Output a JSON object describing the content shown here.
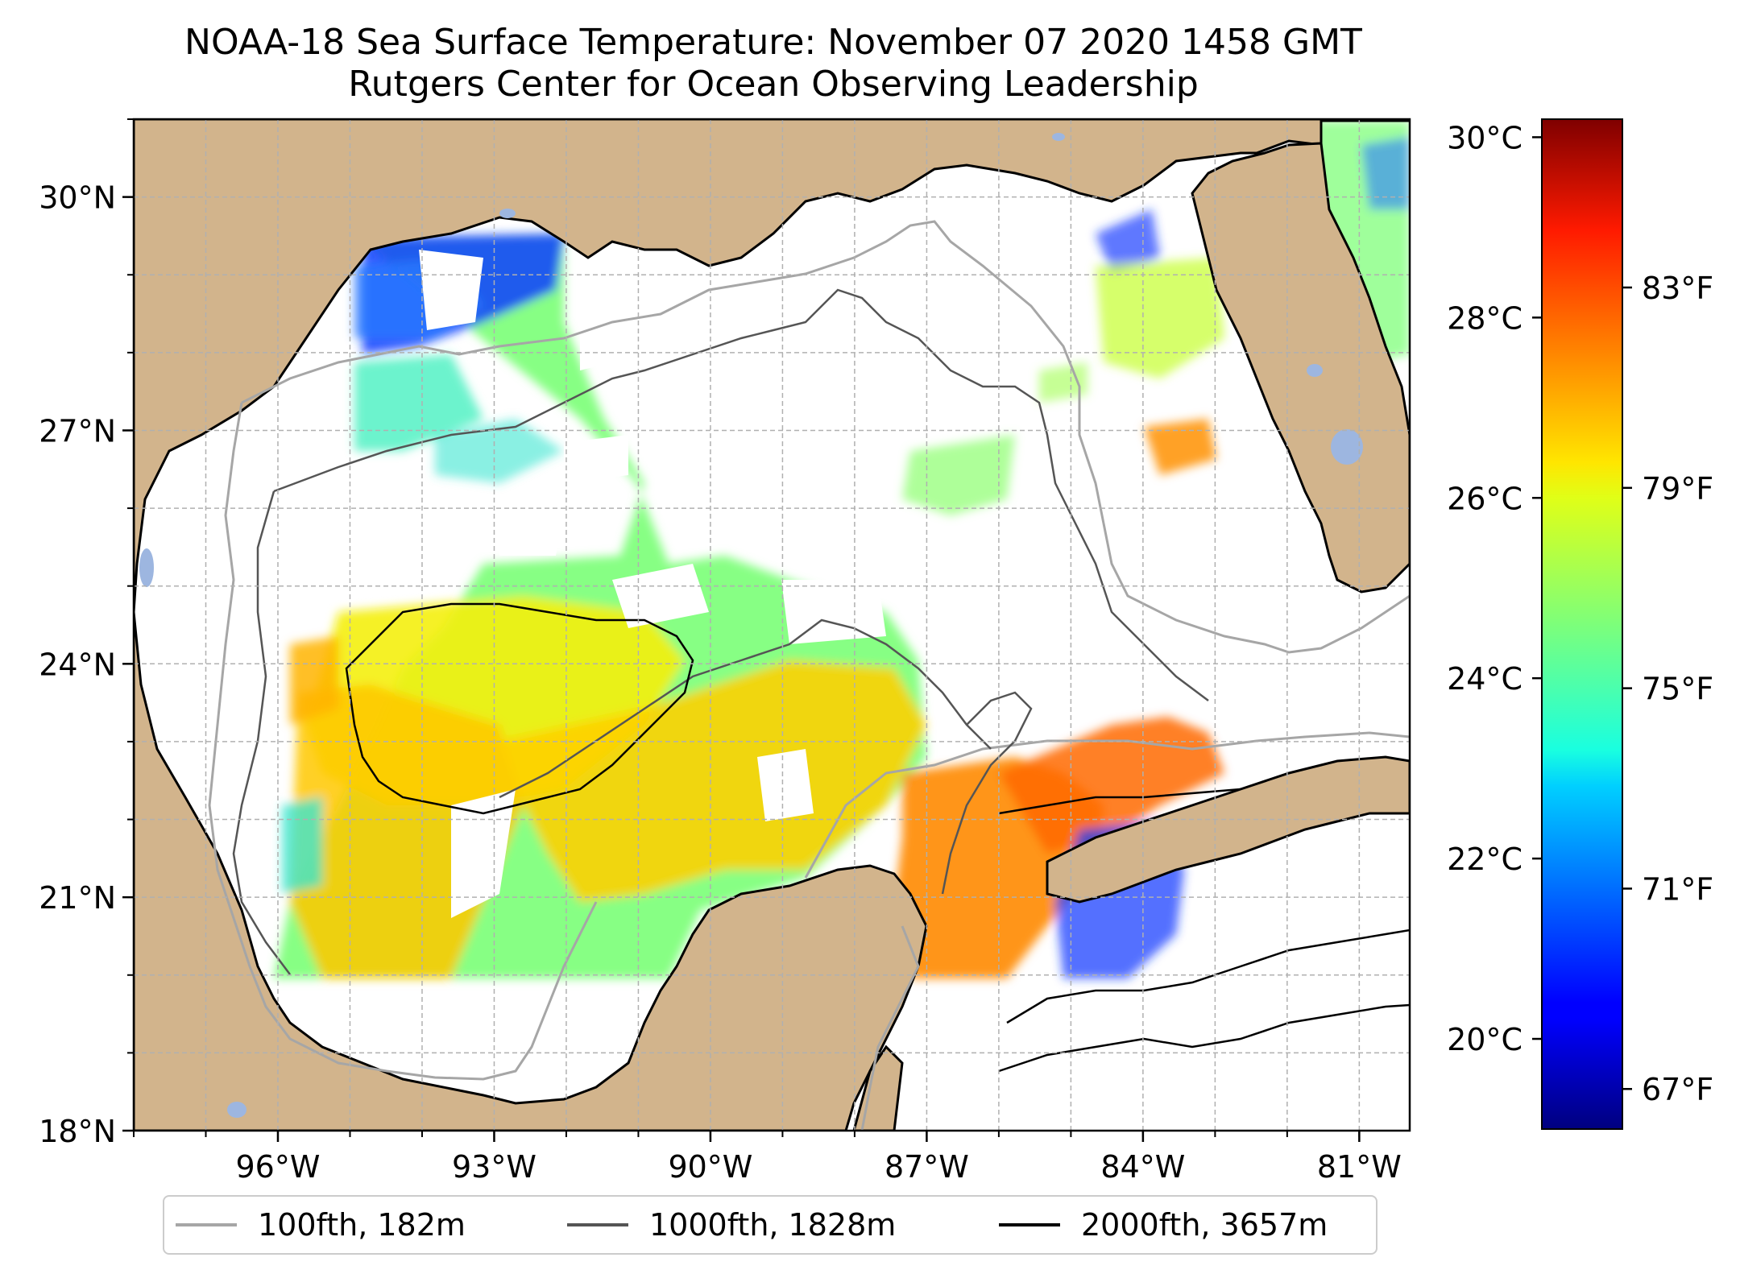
{
  "title": {
    "line1": "NOAA-18 Sea Surface Temperature: November 07 2020 1458 GMT",
    "line2": "Rutgers Center for Ocean Observing Leadership"
  },
  "map": {
    "region": "Gulf of Mexico",
    "lon_range": [
      -98,
      -80.3
    ],
    "lat_range": [
      18,
      31
    ],
    "lat_labels": [
      "30°N",
      "27°N",
      "24°N",
      "21°N",
      "18°N"
    ],
    "lat_values": [
      30,
      27,
      24,
      21,
      18
    ],
    "lon_labels": [
      "96°W",
      "93°W",
      "90°W",
      "87°W",
      "84°W",
      "81°W"
    ],
    "lon_values": [
      -96,
      -93,
      -90,
      -87,
      -84,
      -81
    ],
    "gridlines": true
  },
  "colorbar": {
    "celsius_labels": [
      "30°C",
      "28°C",
      "26°C",
      "24°C",
      "22°C",
      "20°C"
    ],
    "celsius_values": [
      30,
      28,
      26,
      24,
      22,
      20
    ],
    "fahrenheit_labels": [
      "83°F",
      "79°F",
      "75°F",
      "71°F",
      "67°F"
    ],
    "fahrenheit_values": [
      83,
      79,
      75,
      71,
      67
    ],
    "range_c": [
      19,
      30.2
    ],
    "colormap": "jet"
  },
  "legend": {
    "items": [
      {
        "label": "100fth, 182m",
        "color": "#a6a6a6"
      },
      {
        "label": "1000fth, 1828m",
        "color": "#555555"
      },
      {
        "label": "2000fth, 3657m",
        "color": "#000000"
      }
    ]
  },
  "colors": {
    "land": "#d2b48c",
    "water_body": "#9db6e0",
    "ocean_nodata": "#ffffff",
    "frame": "#000000"
  }
}
